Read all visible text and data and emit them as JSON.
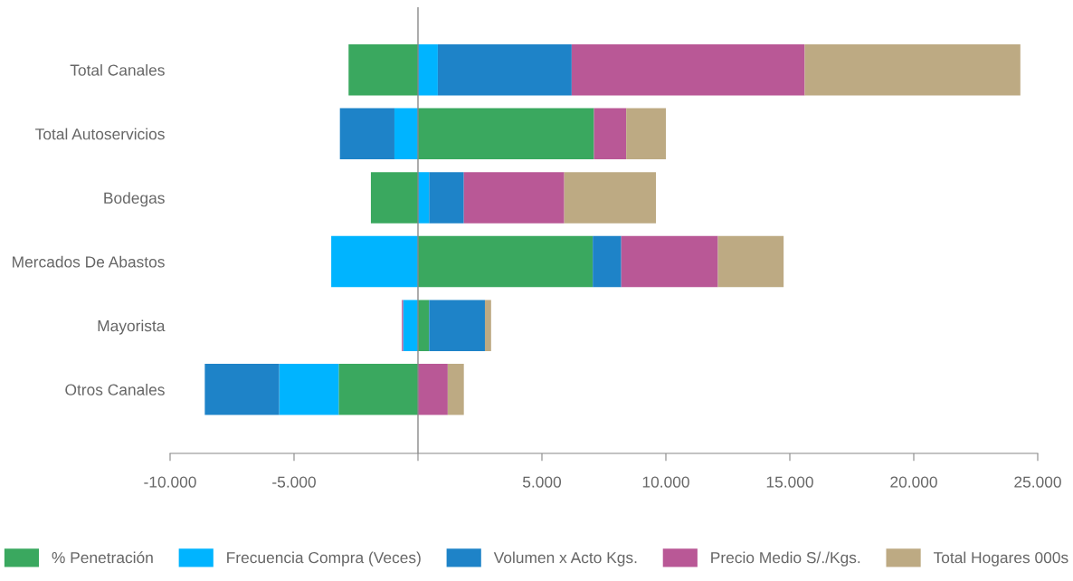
{
  "chart_data": {
    "type": "bar",
    "orientation": "horizontal",
    "stacked": true,
    "categories": [
      "Total Canales",
      "Total Autoservicios",
      "Bodegas",
      "Mercados De Abastos",
      "Mayorista",
      "Otros Canales"
    ],
    "series": [
      {
        "name": "% Penetración",
        "color": "#3aa85f",
        "values": [
          -2800,
          7100,
          -1900,
          7050,
          450,
          -3200
        ]
      },
      {
        "name": "Frecuencia Compra (Veces)",
        "color": "#00b4ff",
        "values": [
          800,
          -950,
          450,
          -3500,
          -600,
          -2400
        ]
      },
      {
        "name": "Volumen x Acto Kgs.",
        "color": "#1e83c8",
        "values": [
          5400,
          -2200,
          1400,
          1150,
          2250,
          -3000
        ]
      },
      {
        "name": "Precio Medio S/./Kgs.",
        "color": "#b95896",
        "values": [
          9400,
          1300,
          4050,
          3900,
          -50,
          1200
        ]
      },
      {
        "name": "Total Hogares 000s",
        "color": "#bdaa83",
        "values": [
          8700,
          1600,
          3700,
          2650,
          250,
          650
        ]
      }
    ],
    "xlim": [
      -10000,
      25000
    ],
    "xticks": [
      {
        "value": -10000,
        "label": "-10.000"
      },
      {
        "value": -5000,
        "label": "-5.000"
      },
      {
        "value": 0,
        "label": null
      },
      {
        "value": 5000,
        "label": "5.000"
      },
      {
        "value": 10000,
        "label": "10.000"
      },
      {
        "value": 15000,
        "label": "15.000"
      },
      {
        "value": 20000,
        "label": "20.000"
      },
      {
        "value": 25000,
        "label": "25.000"
      }
    ],
    "ref_lines": [
      {
        "axis": "x",
        "value": 0,
        "label": null,
        "color": "#888888"
      }
    ],
    "grid": false,
    "legend": "bottom"
  }
}
